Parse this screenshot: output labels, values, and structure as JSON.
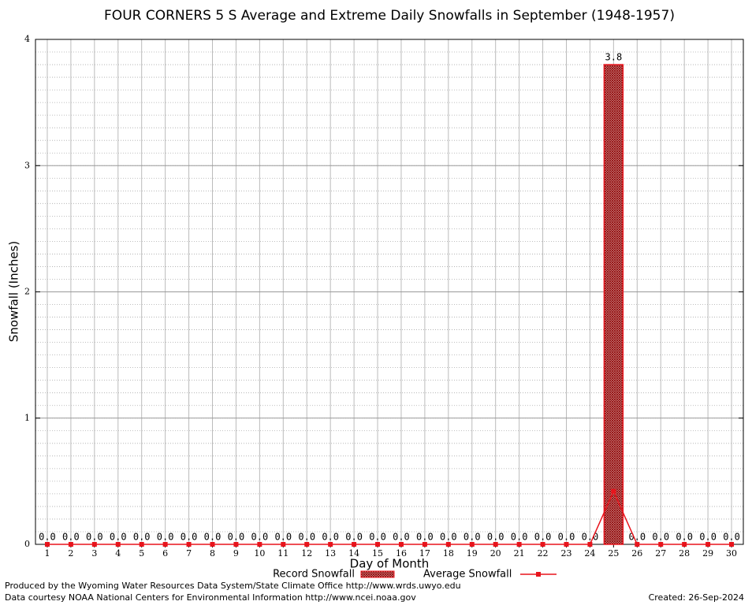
{
  "chart_data": {
    "type": "bar",
    "title": "FOUR CORNERS 5 S Average and Extreme Daily Snowfalls in September (1948-1957)",
    "x_label": "Day of Month",
    "y_label": "Snowfall (Inches)",
    "categories": [
      1,
      2,
      3,
      4,
      5,
      6,
      7,
      8,
      9,
      10,
      11,
      12,
      13,
      14,
      15,
      16,
      17,
      18,
      19,
      20,
      21,
      22,
      23,
      24,
      25,
      26,
      27,
      28,
      29,
      30
    ],
    "series": [
      {
        "name": "Record Snowfall",
        "type": "bar",
        "color": "#8b0000",
        "values": [
          0,
          0,
          0,
          0,
          0,
          0,
          0,
          0,
          0,
          0,
          0,
          0,
          0,
          0,
          0,
          0,
          0,
          0,
          0,
          0,
          0,
          0,
          0,
          0,
          3.8,
          0,
          0,
          0,
          0,
          0
        ],
        "value_labels": [
          "0.0",
          "0.0",
          "0.0",
          "0.0",
          "0.0",
          "0.0",
          "0.0",
          "0.0",
          "0.0",
          "0.0",
          "0.0",
          "0.0",
          "0.0",
          "0.0",
          "0.0",
          "0.0",
          "0.0",
          "0.0",
          "0.0",
          "0.0",
          "0.0",
          "0.0",
          "0.0",
          "0.0",
          "3.8",
          "0.0",
          "0.0",
          "0.0",
          "0.0",
          "0.0"
        ]
      },
      {
        "name": "Average Snowfall",
        "type": "line",
        "color": "#e8141c",
        "values": [
          0,
          0,
          0,
          0,
          0,
          0,
          0,
          0,
          0,
          0,
          0,
          0,
          0,
          0,
          0,
          0,
          0,
          0,
          0,
          0,
          0,
          0,
          0,
          0,
          0.42,
          0,
          0,
          0,
          0,
          0
        ]
      }
    ],
    "ylim": [
      0,
      4
    ],
    "yticks": [
      0,
      1,
      2,
      3,
      4
    ],
    "grid": true,
    "minor_grid": 0.1,
    "footer": [
      "Produced by the Wyoming Water Resources Data System/State Climate Office http://www.wrds.uwyo.edu",
      "Data courtesy NOAA National Centers for Environmental Information http://www.ncei.noaa.gov",
      "Created:  26-Sep-2024"
    ]
  }
}
